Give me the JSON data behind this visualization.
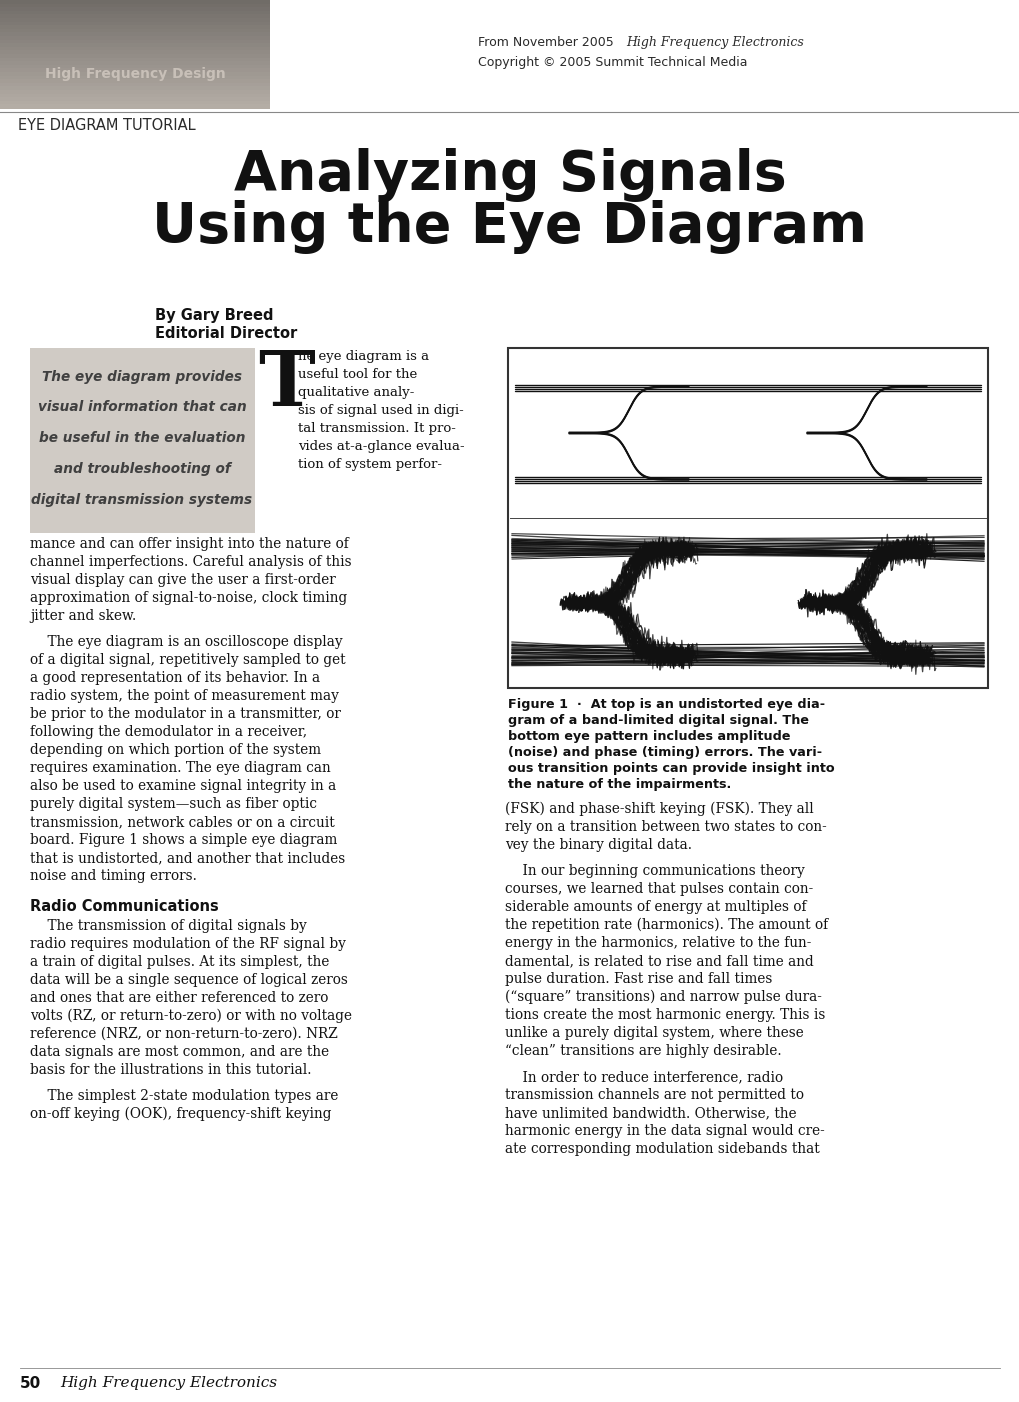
{
  "title_line1": "Analyzing Signals",
  "title_line2": "Using the Eye Diagram",
  "header_label": "High Frequency Design",
  "header_sublabel": "EYE DIAGRAM TUTORIAL",
  "header_right_line1": "From November 2005 ",
  "header_right_line1_italic": "High Frequency Electronics",
  "header_right_line2": "Copyright © 2005 Summit Technical Media",
  "author_name": "By Gary Breed",
  "author_title": "Editorial Director",
  "sidebar_lines": [
    "The eye diagram provides",
    "visual information that can",
    "be useful in the evaluation",
    "and troubleshooting of",
    "digital transmission systems"
  ],
  "sidebar_bg": "#d0cbc5",
  "drop_cap": "T",
  "intro_right_lines": [
    "he eye diagram is a",
    "useful tool for the",
    "qualitative analy-",
    "sis of signal used in digi-",
    "tal transmission. It pro-",
    "vides at-a-glance evalua-",
    "tion of system perfor-"
  ],
  "body_continuation": [
    "mance and can offer insight into the nature of",
    "channel imperfections. Careful analysis of this",
    "visual display can give the user a first-order",
    "approximation of signal-to-noise, clock timing",
    "jitter and skew."
  ],
  "para2_indent": "    The eye diagram is an oscilloscope display",
  "para2_lines": [
    "of a digital signal, repetitively sampled to get",
    "a good representation of its behavior. In a",
    "radio system, the point of measurement may",
    "be prior to the modulator in a transmitter, or",
    "following the demodulator in a receiver,",
    "depending on which portion of the system",
    "requires examination. The eye diagram can",
    "also be used to examine signal integrity in a",
    "purely digital system—such as fiber optic",
    "transmission, network cables or on a circuit",
    "board. Figure 1 shows a simple eye diagram",
    "that is undistorted, and another that includes",
    "noise and timing errors."
  ],
  "section_header": "Radio Communications",
  "para3_indent": "    The transmission of digital signals by",
  "para3_lines": [
    "radio requires modulation of the RF signal by",
    "a train of digital pulses. At its simplest, the",
    "data will be a single sequence of logical zeros",
    "and ones that are either referenced to zero",
    "volts (RZ, or return-to-zero) or with no voltage",
    "reference (NRZ, or non-return-to-zero). NRZ",
    "data signals are most common, and are the",
    "basis for the illustrations in this tutorial."
  ],
  "para4_indent": "    The simplest 2-state modulation types are",
  "para4_lines": [
    "on-off keying (OOK), frequency-shift keying"
  ],
  "right_col1_lines": [
    "(FSK) and phase-shift keying (FSK). They all",
    "rely on a transition between two states to con-",
    "vey the binary digital data."
  ],
  "right_col2_indent": "    In our beginning communications theory",
  "right_col2_lines": [
    "courses, we learned that pulses contain con-",
    "siderable amounts of energy at multiples of",
    "the repetition rate (harmonics). The amount of",
    "energy in the harmonics, relative to the fun-",
    "damental, is related to rise and fall time and",
    "pulse duration. Fast rise and fall times",
    "(“square” transitions) and narrow pulse dura-",
    "tions create the most harmonic energy. This is",
    "unlike a purely digital system, where these",
    "“clean” transitions are highly desirable."
  ],
  "right_col3_indent": "    In order to reduce interference, radio",
  "right_col3_lines": [
    "transmission channels are not permitted to",
    "have unlimited bandwidth. Otherwise, the",
    "harmonic energy in the data signal would cre-",
    "ate corresponding modulation sidebands that"
  ],
  "figure_caption_bold": "Figure 1  ·  At top is an undistorted eye dia-",
  "figure_caption_lines": [
    "gram of a band-limited digital signal. The",
    "bottom eye pattern includes amplitude",
    "(noise) and phase (timing) errors. The vari-",
    "ous transition points can provide insight into",
    "the nature of the impairments."
  ],
  "page_num": "50",
  "page_journal": "High Frequency Electronics",
  "bg_color": "#ffffff",
  "text_color": "#1a1a1a",
  "header_box_colors": [
    "#a09890",
    "#989088",
    "#908880",
    "#888078",
    "#807870",
    "#787068",
    "#706860",
    "#686058",
    "#605850",
    "#585048",
    "#504840",
    "#484038",
    "#403830",
    "#383028",
    "#302820",
    "#282018",
    "#201810",
    "#181008",
    "#100800",
    "#080000"
  ],
  "header_text_color": "#c8c0b8",
  "sidebar_text_color": "#404040",
  "line_color": "#888888"
}
